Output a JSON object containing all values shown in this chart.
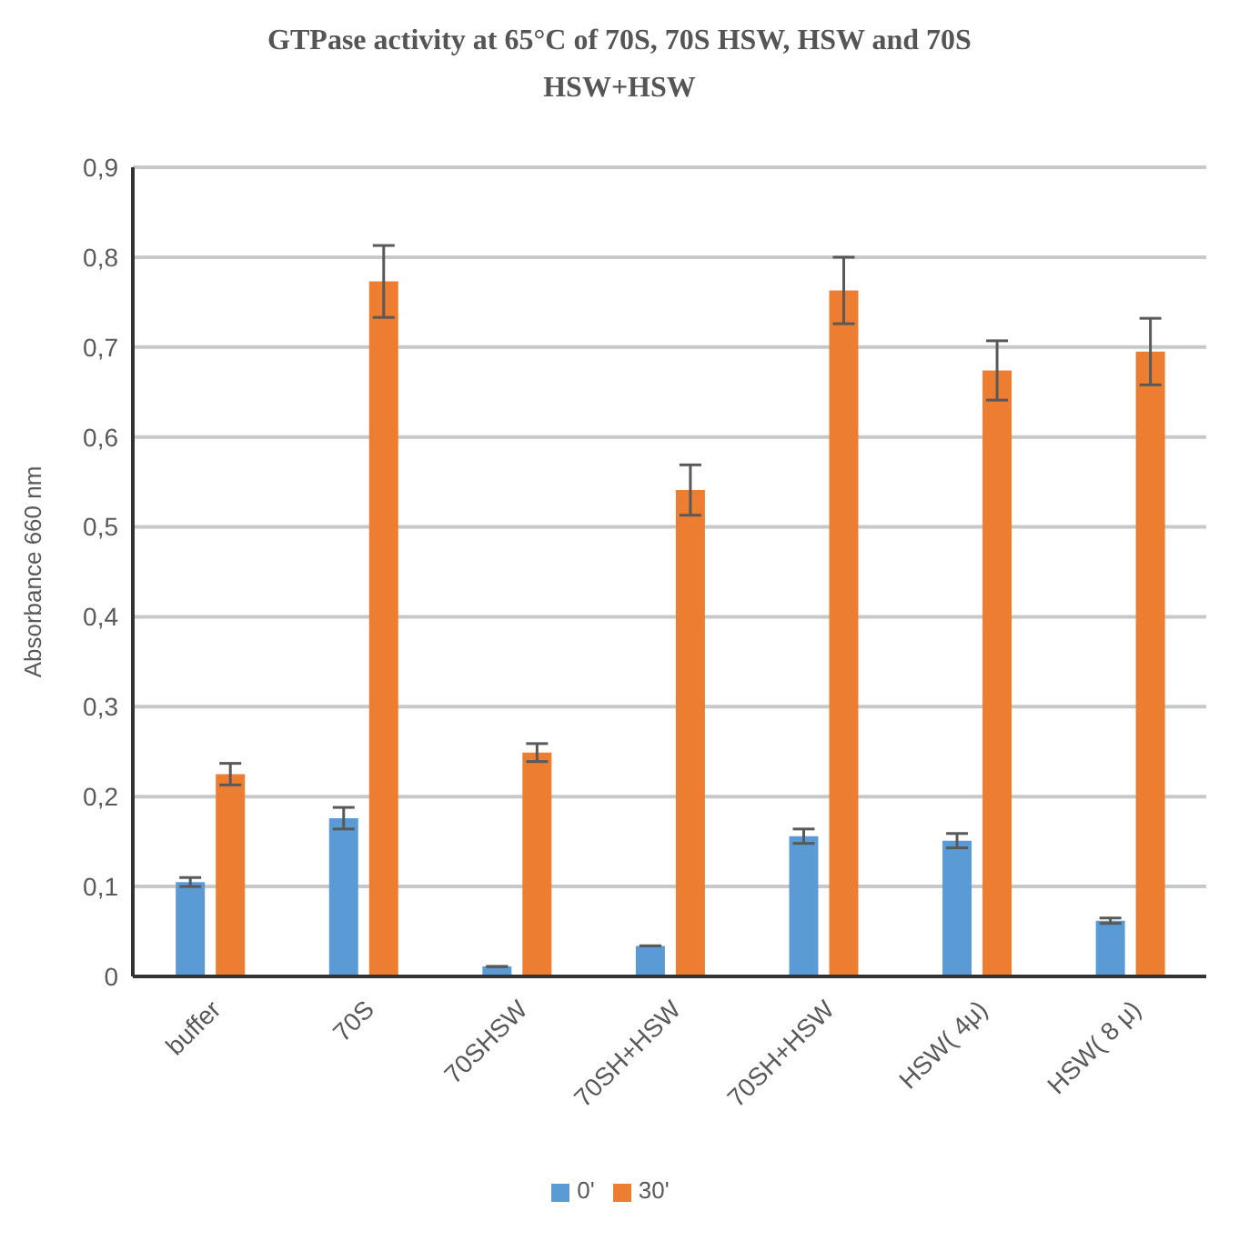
{
  "chart_data": {
    "type": "bar",
    "title": "GTPase activity at 65°C of 70S, 70S HSW, HSW and 70S HSW+HSW",
    "ylabel": "Absorbance 660 nm",
    "categories": [
      "buffer",
      "70S",
      "70SHSW",
      "70SH+HSW",
      "70SH+HSW",
      "HSW( 4μ)",
      "HSW( 8 μ)"
    ],
    "series": [
      {
        "name": "0'",
        "color": "#5b9bd5",
        "values": [
          0.105,
          0.176,
          0.011,
          0.034,
          0.156,
          0.151,
          0.062
        ],
        "errors": [
          0.005,
          0.012,
          null,
          null,
          0.008,
          0.008,
          0.003
        ]
      },
      {
        "name": "30'",
        "color": "#ed7d31",
        "values": [
          0.225,
          0.773,
          0.249,
          0.541,
          0.763,
          0.674,
          0.695
        ],
        "errors": [
          0.012,
          0.04,
          0.01,
          0.028,
          0.037,
          0.033,
          0.037
        ]
      }
    ],
    "ylim": [
      0,
      0.9
    ],
    "yticks": [
      0,
      {
        "value": 0.1,
        "label": "0,1"
      },
      {
        "value": 0.2,
        "label": "0,2"
      },
      {
        "value": 0.3,
        "label": "0,3"
      },
      {
        "value": 0.4,
        "label": "0,4"
      },
      {
        "value": 0.5,
        "label": "0,5"
      },
      {
        "value": 0.6,
        "label": "0,6"
      },
      {
        "value": 0.7,
        "label": "0,7"
      },
      {
        "value": 0.8,
        "label": "0,8"
      },
      {
        "value": 0.9,
        "label": "0,9"
      }
    ],
    "grid": "y",
    "legend": "bottom"
  }
}
